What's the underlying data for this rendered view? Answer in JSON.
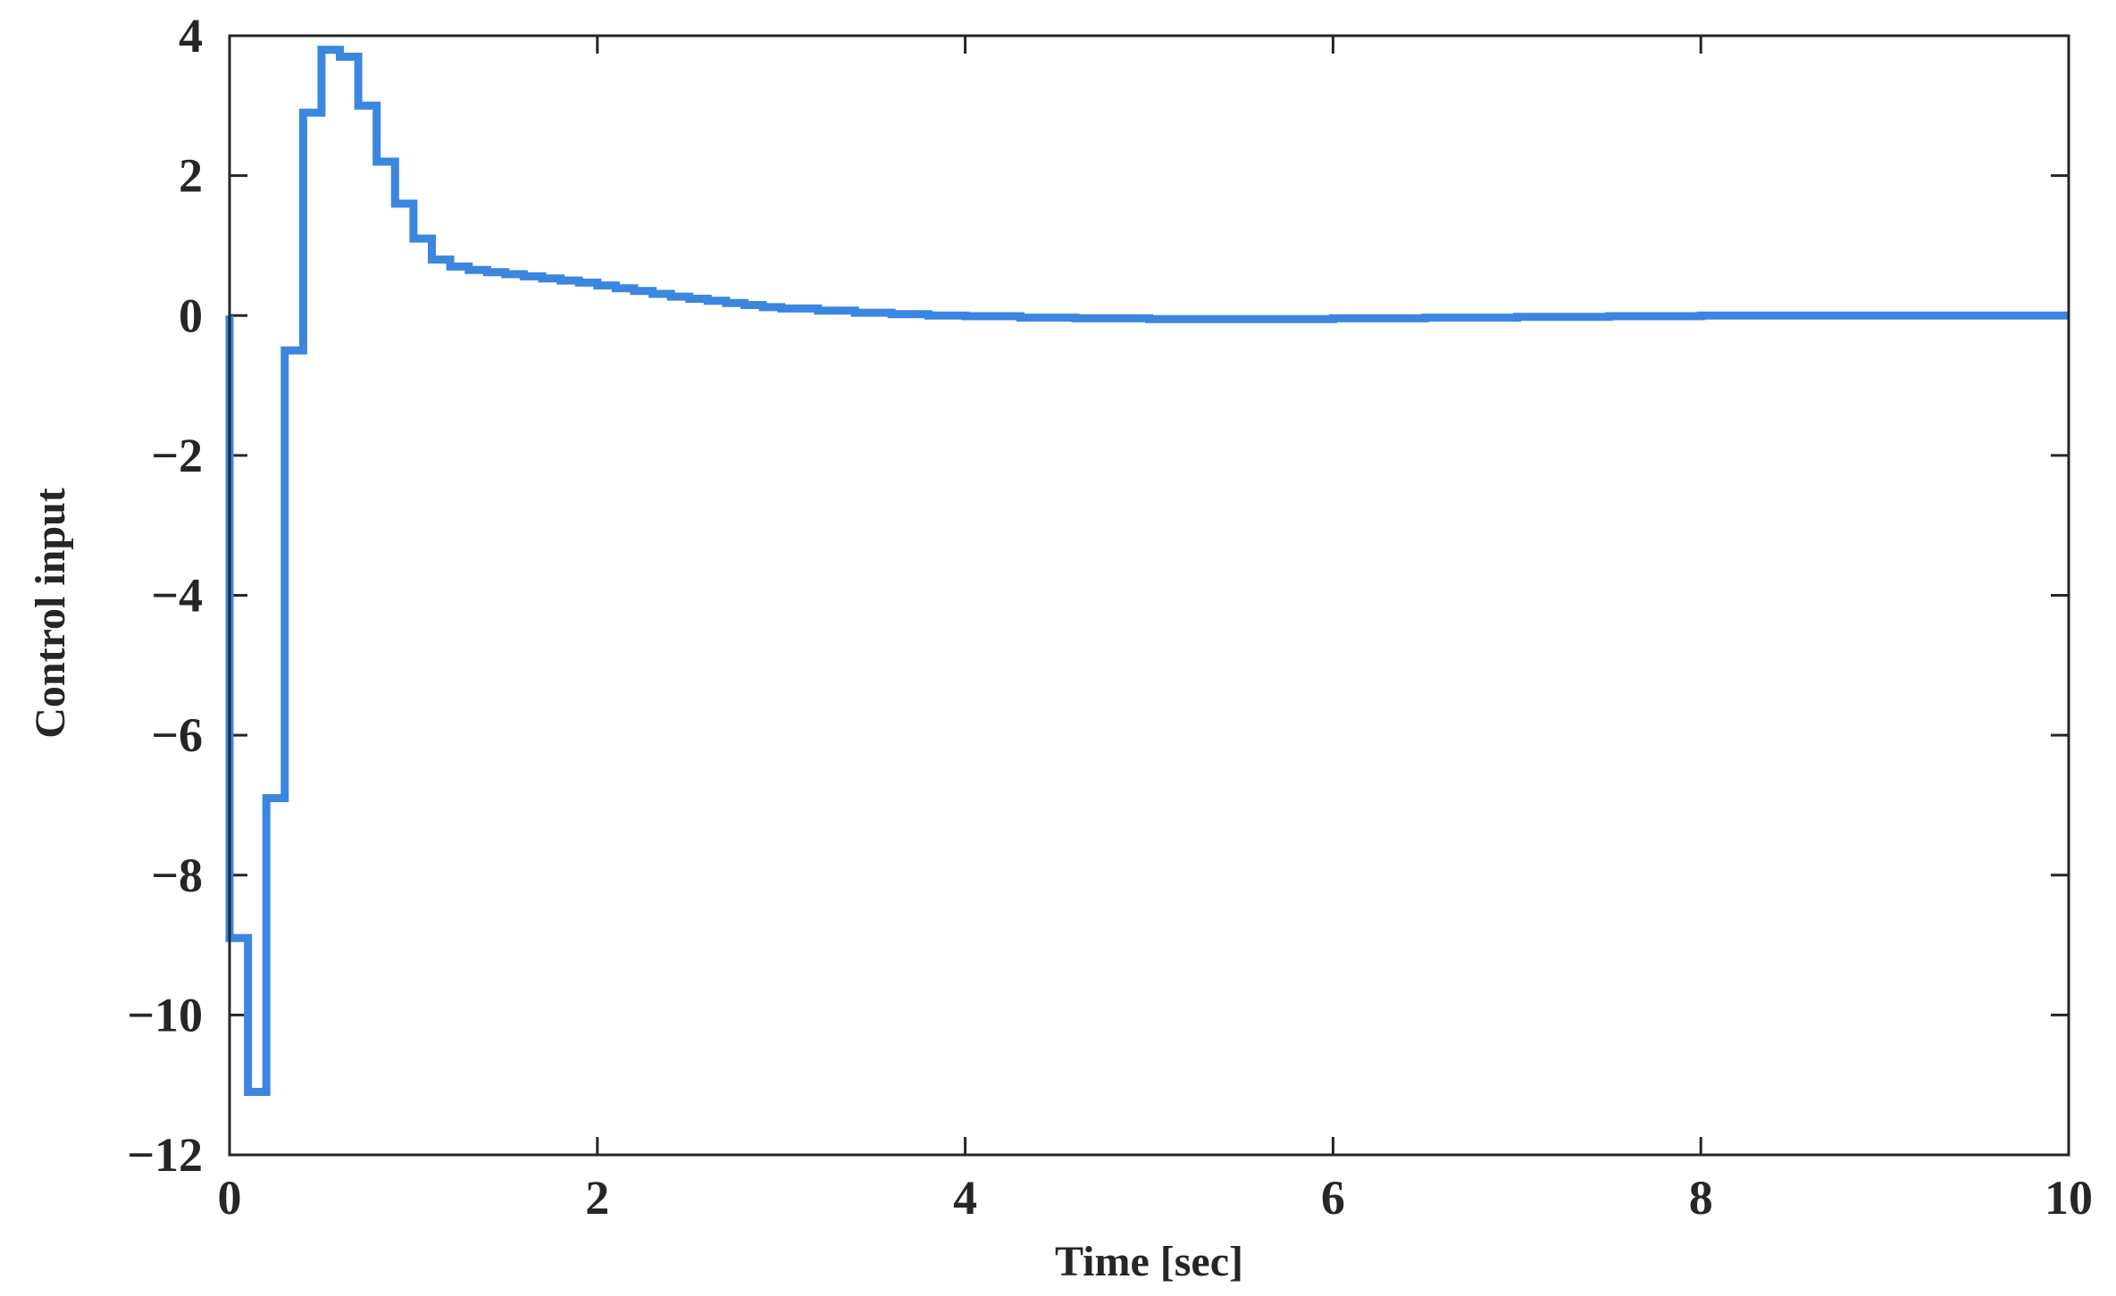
{
  "chart_data": {
    "type": "line",
    "title": "",
    "xlabel": "Time [sec]",
    "ylabel": "Control input",
    "xlim": [
      0,
      10
    ],
    "ylim": [
      -12,
      4
    ],
    "xticks": [
      0,
      2,
      4,
      6,
      8,
      10
    ],
    "yticks": [
      4,
      2,
      0,
      -2,
      -4,
      -6,
      -8,
      -10,
      -12
    ],
    "xtick_labels": [
      "0",
      "2",
      "4",
      "6",
      "8",
      "10"
    ],
    "ytick_labels": [
      "4",
      "2",
      "0",
      "−2",
      "−4",
      "−6",
      "−8",
      "−10",
      "−12"
    ],
    "grid": false,
    "box": true,
    "line_style": "stairs",
    "series": [
      {
        "color": "#3a86e0",
        "x": [
          0,
          0.1,
          0.2,
          0.3,
          0.4,
          0.5,
          0.6,
          0.7,
          0.8,
          0.9,
          1.0,
          1.1,
          1.2,
          1.3,
          1.4,
          1.5,
          1.6,
          1.7,
          1.8,
          1.9,
          2.0,
          2.1,
          2.2,
          2.3,
          2.4,
          2.5,
          2.6,
          2.7,
          2.8,
          2.9,
          3.0,
          3.2,
          3.4,
          3.6,
          3.8,
          4.0,
          4.3,
          4.6,
          5.0,
          5.5,
          6.0,
          6.5,
          7.0,
          7.5,
          8.0,
          8.5,
          9.0,
          9.5
        ],
        "y": [
          -8.9,
          -11.1,
          -6.9,
          -0.5,
          2.9,
          3.8,
          3.7,
          3.0,
          2.2,
          1.6,
          1.1,
          0.8,
          0.7,
          0.65,
          0.62,
          0.59,
          0.56,
          0.53,
          0.5,
          0.47,
          0.43,
          0.39,
          0.35,
          0.31,
          0.27,
          0.24,
          0.21,
          0.18,
          0.15,
          0.12,
          0.1,
          0.07,
          0.04,
          0.02,
          0.0,
          -0.01,
          -0.03,
          -0.04,
          -0.05,
          -0.05,
          -0.04,
          -0.03,
          -0.02,
          -0.01,
          0.0,
          0.0,
          0.0,
          0.0
        ],
        "x_end": 10
      }
    ]
  }
}
